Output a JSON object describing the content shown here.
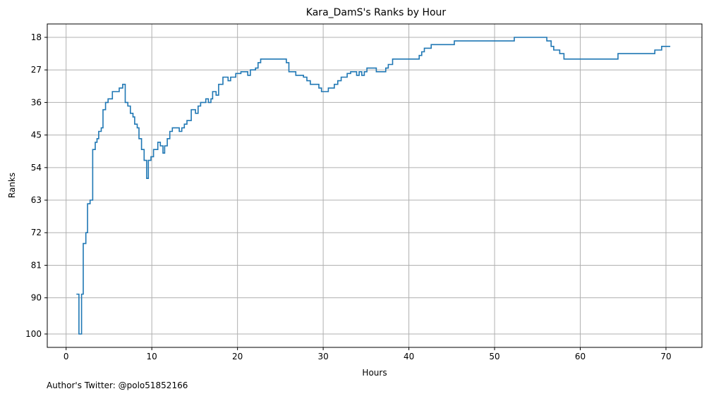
{
  "chart_data": {
    "type": "line",
    "step": true,
    "title": "Kara_DamS's Ranks by Hour",
    "xlabel": "Hours",
    "ylabel": "Ranks",
    "y_inverted": true,
    "xlim": [
      -2.2,
      74.2
    ],
    "ylim": [
      103.7,
      14.3
    ],
    "x_ticks": [
      0,
      10,
      20,
      30,
      40,
      50,
      60,
      70
    ],
    "y_ticks": [
      18,
      27,
      36,
      45,
      54,
      63,
      72,
      81,
      90,
      100
    ],
    "grid": true,
    "color": "#1f77b4",
    "series": [
      {
        "points": [
          [
            1.2,
            89
          ],
          [
            1.5,
            100
          ],
          [
            1.8,
            89
          ],
          [
            2.0,
            75
          ],
          [
            2.3,
            72
          ],
          [
            2.5,
            64
          ],
          [
            2.8,
            63
          ],
          [
            3.1,
            49
          ],
          [
            3.4,
            47
          ],
          [
            3.6,
            46
          ],
          [
            3.8,
            44
          ],
          [
            4.1,
            43
          ],
          [
            4.3,
            38
          ],
          [
            4.6,
            36
          ],
          [
            4.9,
            35
          ],
          [
            5.4,
            33
          ],
          [
            6.2,
            32
          ],
          [
            6.6,
            31
          ],
          [
            6.9,
            36
          ],
          [
            7.2,
            37
          ],
          [
            7.5,
            39
          ],
          [
            7.8,
            40
          ],
          [
            8.0,
            42
          ],
          [
            8.3,
            43
          ],
          [
            8.5,
            46
          ],
          [
            8.8,
            49
          ],
          [
            9.1,
            52
          ],
          [
            9.4,
            57
          ],
          [
            9.6,
            52
          ],
          [
            9.9,
            51
          ],
          [
            10.2,
            49
          ],
          [
            10.7,
            47
          ],
          [
            11.0,
            48
          ],
          [
            11.3,
            50
          ],
          [
            11.5,
            48
          ],
          [
            11.8,
            46
          ],
          [
            12.1,
            44
          ],
          [
            12.4,
            43
          ],
          [
            13.2,
            44
          ],
          [
            13.5,
            43
          ],
          [
            13.8,
            42
          ],
          [
            14.1,
            41
          ],
          [
            14.6,
            38
          ],
          [
            15.1,
            39
          ],
          [
            15.4,
            37
          ],
          [
            15.7,
            36
          ],
          [
            16.3,
            35
          ],
          [
            16.6,
            36
          ],
          [
            16.9,
            35
          ],
          [
            17.1,
            33
          ],
          [
            17.5,
            34
          ],
          [
            17.8,
            31
          ],
          [
            18.3,
            29
          ],
          [
            18.9,
            30
          ],
          [
            19.2,
            29
          ],
          [
            19.8,
            28
          ],
          [
            20.4,
            27.5
          ],
          [
            21.2,
            28.5
          ],
          [
            21.5,
            27
          ],
          [
            22.1,
            26.5
          ],
          [
            22.4,
            25
          ],
          [
            22.7,
            24
          ],
          [
            25.7,
            25
          ],
          [
            26.0,
            27.5
          ],
          [
            26.8,
            28.5
          ],
          [
            27.7,
            29
          ],
          [
            28.1,
            30
          ],
          [
            28.5,
            31
          ],
          [
            29.5,
            32
          ],
          [
            29.8,
            33
          ],
          [
            30.6,
            32
          ],
          [
            31.3,
            31
          ],
          [
            31.7,
            30
          ],
          [
            32.1,
            29
          ],
          [
            32.8,
            28
          ],
          [
            33.2,
            27.5
          ],
          [
            33.9,
            28.5
          ],
          [
            34.2,
            27.5
          ],
          [
            34.5,
            28.5
          ],
          [
            34.8,
            27.5
          ],
          [
            35.1,
            26.5
          ],
          [
            36.2,
            27.5
          ],
          [
            37.3,
            26.5
          ],
          [
            37.6,
            25.5
          ],
          [
            38.1,
            24
          ],
          [
            41.2,
            23
          ],
          [
            41.5,
            22
          ],
          [
            41.8,
            21
          ],
          [
            42.6,
            20
          ],
          [
            45.3,
            19
          ],
          [
            52.3,
            18
          ],
          [
            56.1,
            19
          ],
          [
            56.6,
            20.5
          ],
          [
            56.9,
            21.5
          ],
          [
            57.6,
            22.5
          ],
          [
            58.1,
            24
          ],
          [
            64.4,
            22.5
          ],
          [
            68.7,
            21.5
          ],
          [
            69.5,
            20.5
          ],
          [
            70.5,
            20.5
          ]
        ]
      }
    ],
    "annotation": "Author's Twitter: @polo51852166"
  }
}
